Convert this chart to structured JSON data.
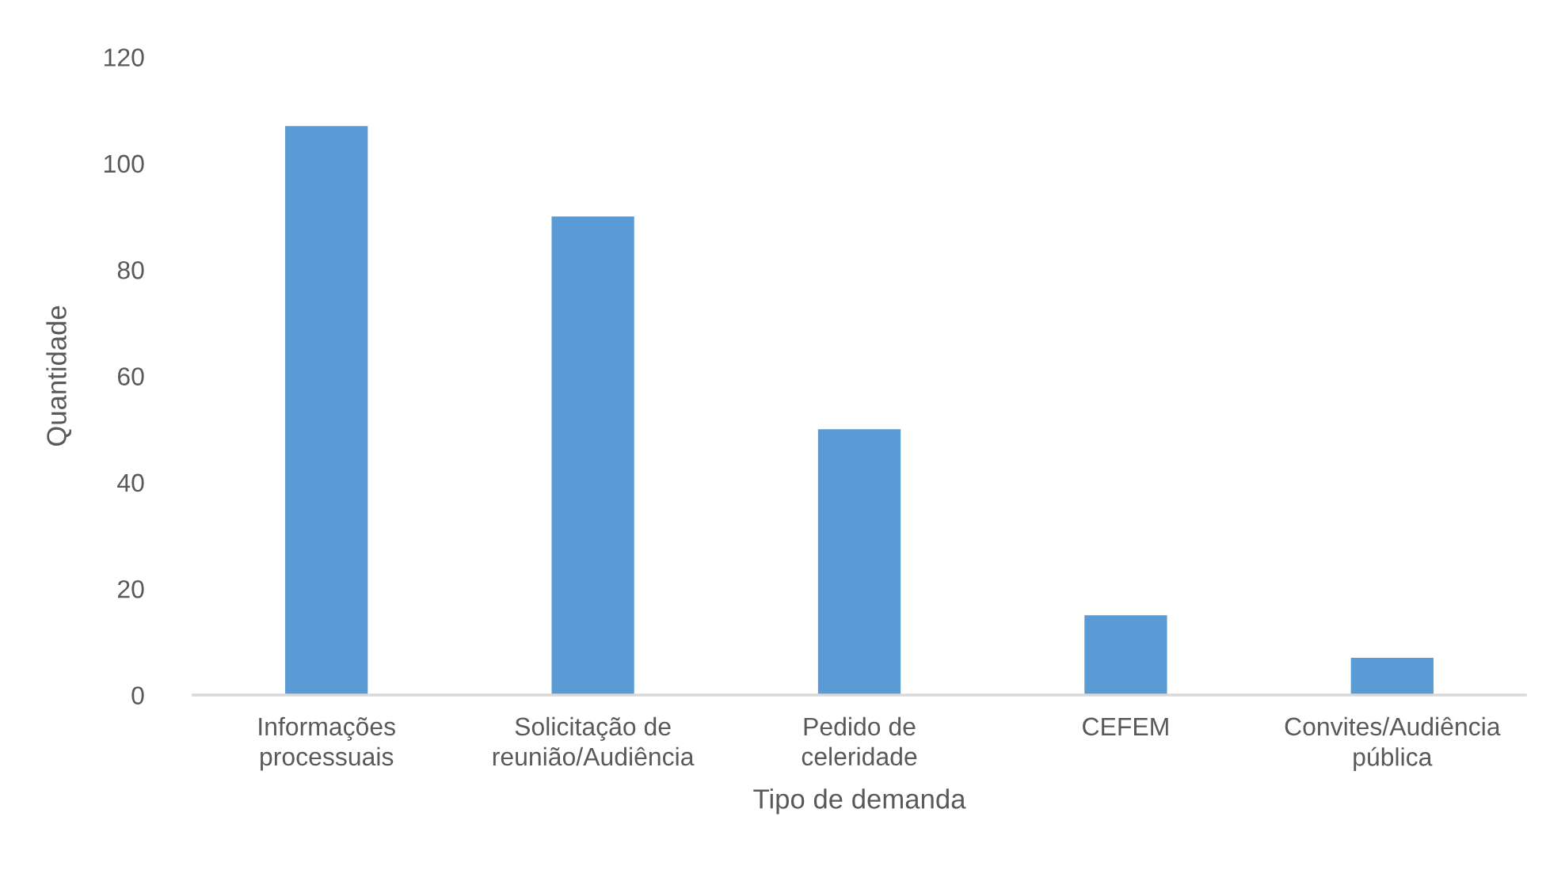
{
  "chart_data": {
    "type": "bar",
    "xlabel": "Tipo de demanda",
    "ylabel": "Quantidade",
    "categories": [
      "Informações\nprocessuais",
      "Solicitação de\nreunião/Audiência",
      "Pedido de\nceleridade",
      "CEFEM",
      "Convites/Audiência\npública"
    ],
    "values": [
      107,
      90,
      50,
      15,
      7
    ],
    "color": "#5b9bd5",
    "ylim": [
      0,
      120
    ],
    "yticks": [
      0,
      20,
      40,
      60,
      80,
      100,
      120
    ],
    "grid": false,
    "legend": false
  }
}
